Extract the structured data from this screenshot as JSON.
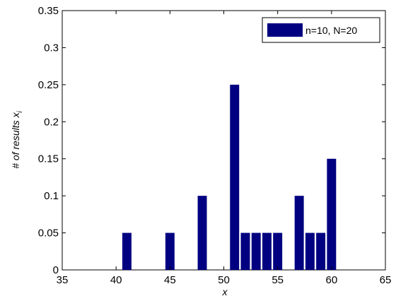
{
  "chart_data": {
    "type": "bar",
    "xlabel": "x",
    "ylabel": "# of results x",
    "ylabel_subscript": "i",
    "xlim": [
      35,
      65
    ],
    "ylim": [
      0,
      0.35
    ],
    "xticks": [
      35,
      40,
      45,
      50,
      55,
      60,
      65
    ],
    "yticks": [
      0,
      0.05,
      0.1,
      0.15,
      0.2,
      0.25,
      0.3,
      0.35
    ],
    "ytick_labels": [
      "0",
      "0.05",
      "0.1",
      "0.15",
      "0.2",
      "0.25",
      "0.3",
      "0.35"
    ],
    "grid": false,
    "legend_position": "top-right",
    "series": [
      {
        "name": "n=10, N=20",
        "color": "#000080",
        "x": [
          41,
          45,
          48,
          51,
          52,
          53,
          54,
          55,
          57,
          58,
          59,
          60
        ],
        "values": [
          0.05,
          0.05,
          0.1,
          0.25,
          0.05,
          0.05,
          0.05,
          0.05,
          0.1,
          0.05,
          0.05,
          0.15
        ]
      }
    ]
  }
}
